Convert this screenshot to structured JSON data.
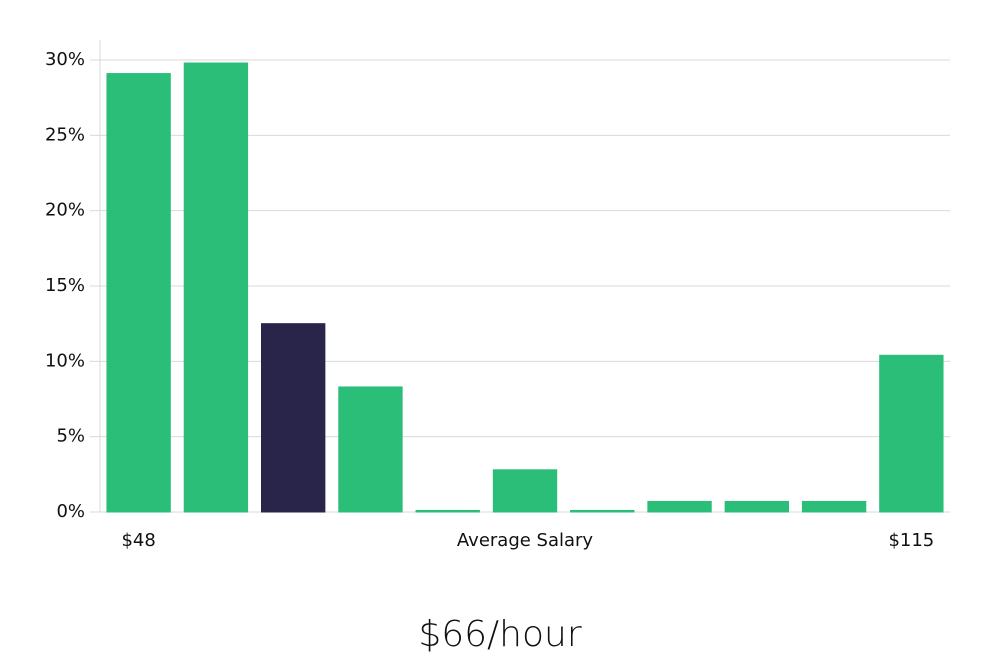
{
  "chart_data": {
    "type": "bar",
    "x_label": "Average Salary",
    "subtitle": "$66/hour",
    "categories": [
      "$48",
      null,
      null,
      null,
      null,
      null,
      null,
      null,
      null,
      null,
      "$115"
    ],
    "values": [
      29.1,
      29.8,
      12.5,
      8.3,
      0.1,
      2.8,
      0.1,
      0.7,
      0.7,
      0.7,
      10.4
    ],
    "colors": [
      "#2bbe78",
      "#2bbe78",
      "#29254a",
      "#2bbe78",
      "#2bbe78",
      "#2bbe78",
      "#2bbe78",
      "#2bbe78",
      "#2bbe78",
      "#2bbe78",
      "#2bbe78"
    ],
    "ylim": [
      0,
      30
    ],
    "yticks": [
      {
        "value": 0,
        "label": "0%"
      },
      {
        "value": 5,
        "label": "5%"
      },
      {
        "value": 10,
        "label": "10%"
      },
      {
        "value": 15,
        "label": "15%"
      },
      {
        "value": 20,
        "label": "20%"
      },
      {
        "value": 25,
        "label": "25%"
      },
      {
        "value": 30,
        "label": "30%"
      }
    ],
    "grid": true
  }
}
